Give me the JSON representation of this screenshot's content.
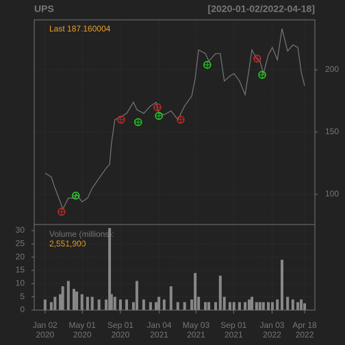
{
  "chart_data": [
    {
      "type": "line",
      "title": "UPS",
      "subtitle": "[2020-01-02/2022-04-18]",
      "annotation": "Last 187.160004",
      "x": [
        "2020-01-02",
        "2020-01-22",
        "2020-02-03",
        "2020-02-20",
        "2020-02-28",
        "2020-03-17",
        "2020-04-04",
        "2020-04-13",
        "2020-04-30",
        "2020-05-18",
        "2020-06-02",
        "2020-06-24",
        "2020-07-17",
        "2020-07-28",
        "2020-08-03",
        "2020-08-14",
        "2020-09-01",
        "2020-09-21",
        "2020-10-13",
        "2020-10-24",
        "2020-11-15",
        "2020-12-07",
        "2020-12-25",
        "2021-01-03",
        "2021-01-20",
        "2021-02-11",
        "2021-03-05",
        "2021-03-27",
        "2021-04-19",
        "2021-04-30",
        "2021-05-11",
        "2021-06-02",
        "2021-06-13",
        "2021-07-05",
        "2021-07-20",
        "2021-08-02",
        "2021-08-20",
        "2021-09-02",
        "2021-09-20",
        "2021-10-08",
        "2021-10-21",
        "2021-10-30",
        "2021-11-14",
        "2021-11-25",
        "2021-12-06",
        "2021-12-22",
        "2022-01-04",
        "2022-01-20",
        "2022-02-04",
        "2022-02-22",
        "2022-03-11",
        "2022-03-27",
        "2022-04-07",
        "2022-04-18"
      ],
      "series": [
        {
          "color": "#777777",
          "values": [
            117,
            114,
            105,
            94,
            88,
            97,
            97,
            100,
            94,
            97,
            105,
            113,
            121,
            124,
            141,
            160,
            162,
            165,
            174,
            168,
            165,
            171,
            174,
            165,
            164,
            167,
            160,
            171,
            179,
            193,
            216,
            213,
            207,
            213,
            213,
            191,
            195,
            197,
            191,
            180,
            201,
            216,
            209,
            207,
            197,
            212,
            218,
            208,
            233,
            215,
            220,
            218,
            198,
            187.160004
          ]
        }
      ],
      "sell_signals": {
        "color": "#c0282a",
        "x": [
          "2020-02-24",
          "2020-09-03",
          "2020-12-29",
          "2021-03-14",
          "2021-11-16"
        ],
        "values": [
          86,
          160,
          170,
          160,
          209
        ]
      },
      "buy_signals": {
        "color": "#22cc22",
        "x": [
          "2020-04-10",
          "2020-10-28",
          "2021-01-03",
          "2021-06-08",
          "2021-12-02"
        ],
        "values": [
          99,
          158,
          163,
          204,
          196
        ]
      },
      "xlim": [
        "2019-11-28",
        "2022-05-21"
      ],
      "ylim": [
        75.8,
        240.1
      ],
      "yticks": [
        100,
        150,
        200
      ],
      "grid": true
    },
    {
      "type": "bar",
      "legend_label": "Volume (millions):",
      "last_value_label": "2,551,900",
      "x": [
        "2020-01-02",
        "2020-01-22",
        "2020-02-03",
        "2020-02-20",
        "2020-02-28",
        "2020-03-17",
        "2020-04-04",
        "2020-04-13",
        "2020-04-30",
        "2020-05-18",
        "2020-06-02",
        "2020-06-24",
        "2020-07-17",
        "2020-07-28",
        "2020-08-03",
        "2020-08-14",
        "2020-09-01",
        "2020-09-21",
        "2020-10-13",
        "2020-10-24",
        "2020-11-15",
        "2020-12-07",
        "2020-12-25",
        "2021-01-03",
        "2021-01-20",
        "2021-02-11",
        "2021-03-05",
        "2021-03-27",
        "2021-04-19",
        "2021-04-30",
        "2021-05-11",
        "2021-06-02",
        "2021-06-13",
        "2021-07-05",
        "2021-07-20",
        "2021-08-02",
        "2021-08-20",
        "2021-09-02",
        "2021-09-20",
        "2021-10-08",
        "2021-10-21",
        "2021-10-30",
        "2021-11-14",
        "2021-11-25",
        "2021-12-06",
        "2021-12-22",
        "2022-01-04",
        "2022-01-20",
        "2022-02-04",
        "2022-02-22",
        "2022-03-11",
        "2022-03-27",
        "2022-04-07",
        "2022-04-18"
      ],
      "values": [
        4,
        3,
        5,
        6,
        9,
        11,
        8,
        7,
        6,
        5,
        5,
        4,
        4,
        31,
        6,
        5,
        4,
        4,
        3,
        11,
        4,
        3,
        3,
        5,
        4,
        9,
        3,
        3,
        4,
        14,
        5,
        3,
        3,
        3,
        13,
        5,
        3,
        3,
        3,
        3,
        4,
        5,
        3,
        3,
        3,
        3,
        3,
        4,
        19,
        5,
        4,
        3,
        4,
        2.5519
      ],
      "color": "#888888",
      "xlim": [
        "2019-11-28",
        "2022-05-21"
      ],
      "ylim": [
        0,
        32.3
      ],
      "yticks": [
        0,
        5,
        10,
        15,
        20,
        25,
        30
      ],
      "xticks": [
        {
          "value": "2020-01-02",
          "label": "Jan 02\n2020"
        },
        {
          "value": "2020-05-01",
          "label": "May 01\n2020"
        },
        {
          "value": "2020-09-01",
          "label": "Sep 01\n2020"
        },
        {
          "value": "2021-01-04",
          "label": "Jan 04\n2021"
        },
        {
          "value": "2021-05-03",
          "label": "May 03\n2021"
        },
        {
          "value": "2021-09-01",
          "label": "Sep 01\n2021"
        },
        {
          "value": "2022-01-03",
          "label": "Jan 03\n2022"
        },
        {
          "value": "2022-04-18",
          "label": "Apr 18\n2022"
        }
      ],
      "grid": true
    }
  ]
}
